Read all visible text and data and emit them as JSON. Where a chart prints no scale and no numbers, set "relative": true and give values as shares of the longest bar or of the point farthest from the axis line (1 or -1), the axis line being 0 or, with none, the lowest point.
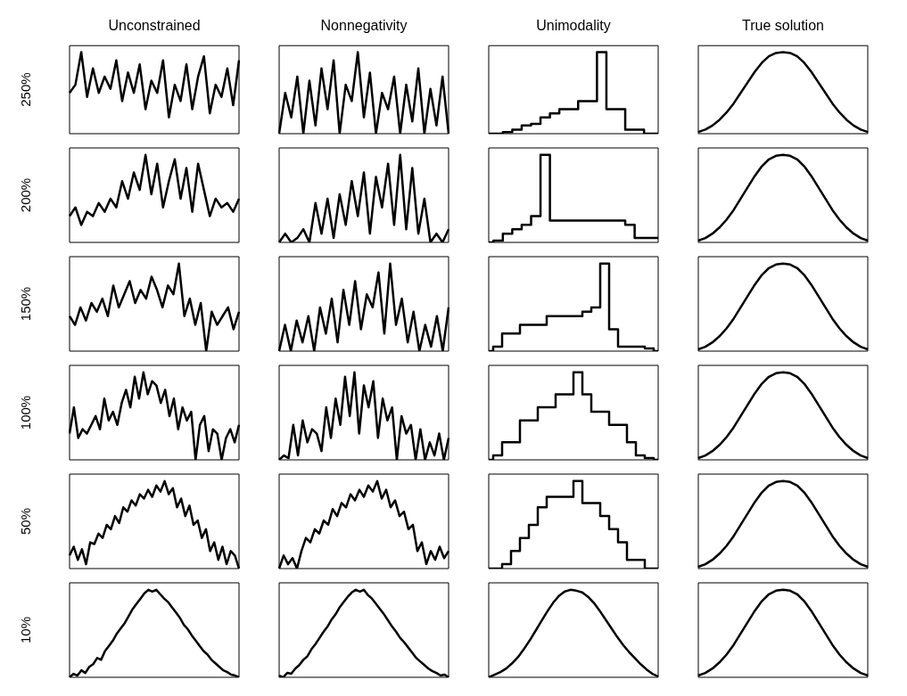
{
  "chart_data": [
    {
      "type": "line",
      "title": "Unconstrained",
      "ylabel": "250%",
      "relative": true,
      "color": "#000000",
      "categories": [
        null,
        null,
        null,
        null,
        null,
        null,
        null,
        null,
        null,
        null,
        null,
        null,
        null,
        null,
        null,
        null,
        null,
        null,
        null,
        null,
        null,
        null,
        null,
        null,
        null,
        null,
        null,
        null,
        null,
        null
      ],
      "values": [
        0.5,
        0.6,
        1,
        0.45,
        0.8,
        0.5,
        0.7,
        0.55,
        0.9,
        0.4,
        0.75,
        0.5,
        0.85,
        0.3,
        0.65,
        0.5,
        0.9,
        0.2,
        0.6,
        0.4,
        0.85,
        0.3,
        0.7,
        0.95,
        0.25,
        0.6,
        0.45,
        0.8,
        0.35,
        0.9
      ]
    },
    {
      "type": "line",
      "title": "Nonnegativity",
      "relative": true,
      "color": "#000000",
      "categories": [
        null,
        null,
        null,
        null,
        null,
        null,
        null,
        null,
        null,
        null,
        null,
        null,
        null,
        null,
        null,
        null,
        null,
        null,
        null,
        null,
        null,
        null,
        null,
        null,
        null,
        null,
        null,
        null,
        null
      ],
      "values": [
        0,
        0.5,
        0.2,
        0.7,
        0,
        0.65,
        0.1,
        0.8,
        0.3,
        0.9,
        0,
        0.6,
        0.4,
        1,
        0.2,
        0.75,
        0,
        0.5,
        0.3,
        0.7,
        0,
        0.6,
        0.15,
        0.8,
        0,
        0.55,
        0.1,
        0.7,
        0
      ]
    },
    {
      "type": "step",
      "title": "Unimodality",
      "relative": true,
      "color": "#000000",
      "categories": [
        null,
        null,
        null,
        null,
        null,
        null,
        null,
        null,
        null,
        null,
        null,
        null,
        null,
        null,
        null,
        null,
        null,
        null,
        null
      ],
      "values": [
        0,
        0,
        0.02,
        0.05,
        0.1,
        0.12,
        0.2,
        0.25,
        0.3,
        0.3,
        0.4,
        0.4,
        1,
        0.3,
        0.3,
        0.05,
        0.05,
        0,
        0
      ]
    },
    {
      "type": "line",
      "title": "True solution",
      "relative": true,
      "color": "#000000",
      "categories": [
        null,
        null,
        null,
        null,
        null,
        null,
        null,
        null,
        null,
        null,
        null,
        null,
        null,
        null,
        null,
        null,
        null,
        null,
        null,
        null,
        null,
        null,
        null,
        null,
        null
      ],
      "values": [
        0.02,
        0.05,
        0.1,
        0.17,
        0.26,
        0.37,
        0.5,
        0.63,
        0.76,
        0.87,
        0.95,
        0.99,
        1,
        0.99,
        0.95,
        0.87,
        0.76,
        0.63,
        0.5,
        0.37,
        0.26,
        0.17,
        0.1,
        0.05,
        0.02
      ]
    },
    {
      "type": "line",
      "ylabel": "200%",
      "relative": true,
      "color": "#000000",
      "categories": [
        null,
        null,
        null,
        null,
        null,
        null,
        null,
        null,
        null,
        null,
        null,
        null,
        null,
        null,
        null,
        null,
        null,
        null,
        null,
        null,
        null,
        null,
        null,
        null,
        null,
        null,
        null,
        null,
        null,
        null
      ],
      "values": [
        0.3,
        0.4,
        0.2,
        0.35,
        0.3,
        0.45,
        0.35,
        0.5,
        0.4,
        0.7,
        0.5,
        0.8,
        0.6,
        1,
        0.55,
        0.9,
        0.4,
        0.7,
        0.95,
        0.5,
        0.85,
        0.35,
        0.9,
        0.6,
        0.3,
        0.5,
        0.4,
        0.45,
        0.35,
        0.5
      ]
    },
    {
      "type": "line",
      "relative": true,
      "color": "#000000",
      "categories": [
        null,
        null,
        null,
        null,
        null,
        null,
        null,
        null,
        null,
        null,
        null,
        null,
        null,
        null,
        null,
        null,
        null,
        null,
        null,
        null,
        null,
        null,
        null,
        null,
        null,
        null,
        null,
        null,
        null
      ],
      "values": [
        0,
        0.1,
        0,
        0.05,
        0.15,
        0,
        0.45,
        0.1,
        0.5,
        0.05,
        0.55,
        0.2,
        0.7,
        0.3,
        0.8,
        0.1,
        0.75,
        0.4,
        0.9,
        0.2,
        1,
        0.15,
        0.85,
        0.1,
        0.5,
        0,
        0.1,
        0,
        0.15
      ]
    },
    {
      "type": "step",
      "relative": true,
      "color": "#000000",
      "categories": [
        null,
        null,
        null,
        null,
        null,
        null,
        null,
        null,
        null,
        null,
        null,
        null,
        null,
        null,
        null,
        null,
        null,
        null,
        null
      ],
      "values": [
        0,
        0.02,
        0.1,
        0.15,
        0.2,
        0.3,
        1,
        0.25,
        0.25,
        0.25,
        0.25,
        0.25,
        0.25,
        0.25,
        0.25,
        0.2,
        0.05,
        0.05,
        0.05
      ]
    },
    {
      "type": "line",
      "relative": true,
      "color": "#000000",
      "categories": [
        null,
        null,
        null,
        null,
        null,
        null,
        null,
        null,
        null,
        null,
        null,
        null,
        null,
        null,
        null,
        null,
        null,
        null,
        null,
        null,
        null,
        null,
        null,
        null,
        null
      ],
      "values": [
        0.02,
        0.05,
        0.1,
        0.17,
        0.26,
        0.37,
        0.5,
        0.63,
        0.76,
        0.87,
        0.95,
        0.99,
        1,
        0.99,
        0.95,
        0.87,
        0.76,
        0.63,
        0.5,
        0.37,
        0.26,
        0.17,
        0.1,
        0.05,
        0.02
      ]
    },
    {
      "type": "line",
      "ylabel": "150%",
      "relative": true,
      "color": "#000000",
      "categories": [
        null,
        null,
        null,
        null,
        null,
        null,
        null,
        null,
        null,
        null,
        null,
        null,
        null,
        null,
        null,
        null,
        null,
        null,
        null,
        null,
        null,
        null,
        null,
        null,
        null,
        null,
        null,
        null,
        null,
        null,
        null,
        null
      ],
      "values": [
        0.4,
        0.3,
        0.5,
        0.35,
        0.55,
        0.45,
        0.6,
        0.4,
        0.75,
        0.5,
        0.65,
        0.8,
        0.55,
        0.7,
        0.6,
        0.85,
        0.7,
        0.5,
        0.75,
        0.65,
        1,
        0.4,
        0.6,
        0.3,
        0.55,
        0,
        0.45,
        0.3,
        0.4,
        0.5,
        0.25,
        0.45
      ]
    },
    {
      "type": "line",
      "relative": true,
      "color": "#000000",
      "categories": [
        null,
        null,
        null,
        null,
        null,
        null,
        null,
        null,
        null,
        null,
        null,
        null,
        null,
        null,
        null,
        null,
        null,
        null,
        null,
        null,
        null,
        null,
        null,
        null,
        null,
        null,
        null,
        null,
        null,
        null
      ],
      "values": [
        0,
        0.3,
        0,
        0.35,
        0.1,
        0.4,
        0,
        0.5,
        0.2,
        0.6,
        0.1,
        0.7,
        0.3,
        0.8,
        0.25,
        0.65,
        0.5,
        0.9,
        0.2,
        1,
        0.3,
        0.6,
        0.1,
        0.45,
        0,
        0.3,
        0.05,
        0.4,
        0,
        0.5
      ]
    },
    {
      "type": "step",
      "relative": true,
      "color": "#000000",
      "categories": [
        null,
        null,
        null,
        null,
        null,
        null,
        null,
        null,
        null,
        null,
        null,
        null,
        null,
        null,
        null,
        null,
        null,
        null,
        null,
        null
      ],
      "values": [
        0,
        0.05,
        0.2,
        0.2,
        0.3,
        0.3,
        0.3,
        0.4,
        0.4,
        0.4,
        0.4,
        0.45,
        0.5,
        1,
        0.25,
        0.05,
        0.05,
        0.05,
        0.03,
        0
      ]
    },
    {
      "type": "line",
      "relative": true,
      "color": "#000000",
      "categories": [
        null,
        null,
        null,
        null,
        null,
        null,
        null,
        null,
        null,
        null,
        null,
        null,
        null,
        null,
        null,
        null,
        null,
        null,
        null,
        null,
        null,
        null,
        null,
        null,
        null
      ],
      "values": [
        0.02,
        0.05,
        0.1,
        0.17,
        0.26,
        0.37,
        0.5,
        0.63,
        0.76,
        0.87,
        0.95,
        0.99,
        1,
        0.99,
        0.95,
        0.87,
        0.76,
        0.63,
        0.5,
        0.37,
        0.26,
        0.17,
        0.1,
        0.05,
        0.02
      ]
    },
    {
      "type": "line",
      "ylabel": "100%",
      "relative": true,
      "color": "#000000",
      "categories": [
        null,
        null,
        null,
        null,
        null,
        null,
        null,
        null,
        null,
        null,
        null,
        null,
        null,
        null,
        null,
        null,
        null,
        null,
        null,
        null,
        null,
        null,
        null,
        null,
        null,
        null,
        null,
        null,
        null,
        null,
        null,
        null,
        null,
        null,
        null,
        null,
        null,
        null,
        null,
        null
      ],
      "values": [
        0.3,
        0.6,
        0.25,
        0.35,
        0.3,
        0.4,
        0.5,
        0.35,
        0.7,
        0.45,
        0.55,
        0.4,
        0.65,
        0.8,
        0.6,
        0.95,
        0.7,
        1,
        0.75,
        0.9,
        0.85,
        0.65,
        0.8,
        0.5,
        0.7,
        0.35,
        0.6,
        0.45,
        0.55,
        0,
        0.4,
        0.5,
        0.1,
        0.35,
        0.3,
        0,
        0.25,
        0.35,
        0.2,
        0.4
      ]
    },
    {
      "type": "line",
      "relative": true,
      "color": "#000000",
      "categories": [
        null,
        null,
        null,
        null,
        null,
        null,
        null,
        null,
        null,
        null,
        null,
        null,
        null,
        null,
        null,
        null,
        null,
        null,
        null,
        null,
        null,
        null,
        null,
        null,
        null,
        null,
        null,
        null,
        null,
        null,
        null,
        null,
        null,
        null,
        null,
        null,
        null
      ],
      "values": [
        0,
        0.05,
        0.02,
        0.4,
        0.05,
        0.45,
        0.2,
        0.35,
        0.3,
        0.1,
        0.6,
        0.25,
        0.7,
        0.4,
        0.95,
        0.5,
        1,
        0.3,
        0.85,
        0.6,
        0.9,
        0.25,
        0.7,
        0.45,
        0.6,
        0,
        0.5,
        0.3,
        0.4,
        0,
        0.35,
        0,
        0.2,
        0.05,
        0.3,
        0,
        0.25
      ]
    },
    {
      "type": "step",
      "relative": true,
      "color": "#000000",
      "categories": [
        null,
        null,
        null,
        null,
        null,
        null,
        null,
        null,
        null,
        null,
        null,
        null,
        null,
        null,
        null,
        null,
        null,
        null,
        null,
        null
      ],
      "values": [
        0,
        0.05,
        0.2,
        0.2,
        0.45,
        0.45,
        0.6,
        0.6,
        0.75,
        0.75,
        1,
        0.75,
        0.55,
        0.55,
        0.4,
        0.4,
        0.2,
        0.05,
        0.02,
        0
      ]
    },
    {
      "type": "line",
      "relative": true,
      "color": "#000000",
      "categories": [
        null,
        null,
        null,
        null,
        null,
        null,
        null,
        null,
        null,
        null,
        null,
        null,
        null,
        null,
        null,
        null,
        null,
        null,
        null,
        null,
        null,
        null,
        null,
        null,
        null
      ],
      "values": [
        0.02,
        0.05,
        0.1,
        0.17,
        0.26,
        0.37,
        0.5,
        0.63,
        0.76,
        0.87,
        0.95,
        0.99,
        1,
        0.99,
        0.95,
        0.87,
        0.76,
        0.63,
        0.5,
        0.37,
        0.26,
        0.17,
        0.1,
        0.05,
        0.02
      ]
    },
    {
      "type": "line",
      "ylabel": "50%",
      "relative": true,
      "color": "#000000",
      "categories": [
        null,
        null,
        null,
        null,
        null,
        null,
        null,
        null,
        null,
        null,
        null,
        null,
        null,
        null,
        null,
        null,
        null,
        null,
        null,
        null,
        null,
        null,
        null,
        null,
        null,
        null,
        null,
        null,
        null,
        null,
        null,
        null,
        null,
        null,
        null,
        null,
        null,
        null,
        null,
        null,
        null,
        null
      ],
      "values": [
        0.15,
        0.25,
        0.1,
        0.22,
        0.05,
        0.3,
        0.28,
        0.4,
        0.35,
        0.5,
        0.45,
        0.6,
        0.52,
        0.7,
        0.65,
        0.78,
        0.72,
        0.85,
        0.8,
        0.9,
        0.82,
        0.95,
        0.88,
        1,
        0.85,
        0.92,
        0.7,
        0.8,
        0.6,
        0.72,
        0.5,
        0.55,
        0.35,
        0.45,
        0.2,
        0.3,
        0.1,
        0.25,
        0.05,
        0.2,
        0.15,
        0
      ]
    },
    {
      "type": "line",
      "relative": true,
      "color": "#000000",
      "categories": [
        null,
        null,
        null,
        null,
        null,
        null,
        null,
        null,
        null,
        null,
        null,
        null,
        null,
        null,
        null,
        null,
        null,
        null,
        null,
        null,
        null,
        null,
        null,
        null,
        null,
        null,
        null,
        null,
        null,
        null,
        null,
        null,
        null,
        null,
        null,
        null,
        null,
        null,
        null
      ],
      "values": [
        0,
        0.15,
        0.05,
        0.12,
        0,
        0.2,
        0.35,
        0.3,
        0.45,
        0.4,
        0.55,
        0.5,
        0.68,
        0.6,
        0.75,
        0.7,
        0.85,
        0.78,
        0.9,
        0.82,
        0.95,
        0.88,
        1,
        0.8,
        0.9,
        0.7,
        0.78,
        0.6,
        0.65,
        0.45,
        0.5,
        0.2,
        0.3,
        0.05,
        0.2,
        0.1,
        0.25,
        0.12,
        0.2
      ]
    },
    {
      "type": "step",
      "relative": true,
      "color": "#000000",
      "categories": [
        null,
        null,
        null,
        null,
        null,
        null,
        null,
        null,
        null,
        null,
        null,
        null,
        null,
        null,
        null,
        null,
        null,
        null,
        null,
        null
      ],
      "values": [
        0,
        0,
        0.05,
        0.2,
        0.35,
        0.5,
        0.7,
        0.82,
        0.82,
        0.82,
        1,
        0.75,
        0.75,
        0.6,
        0.45,
        0.3,
        0.1,
        0.1,
        0,
        0
      ]
    },
    {
      "type": "line",
      "relative": true,
      "color": "#000000",
      "categories": [
        null,
        null,
        null,
        null,
        null,
        null,
        null,
        null,
        null,
        null,
        null,
        null,
        null,
        null,
        null,
        null,
        null,
        null,
        null,
        null,
        null,
        null,
        null,
        null,
        null
      ],
      "values": [
        0.02,
        0.05,
        0.1,
        0.17,
        0.26,
        0.37,
        0.5,
        0.63,
        0.76,
        0.87,
        0.95,
        0.99,
        1,
        0.99,
        0.95,
        0.87,
        0.76,
        0.63,
        0.5,
        0.37,
        0.26,
        0.17,
        0.1,
        0.05,
        0.02
      ]
    },
    {
      "type": "line",
      "ylabel": "10%",
      "relative": true,
      "color": "#000000",
      "categories": [
        null,
        null,
        null,
        null,
        null,
        null,
        null,
        null,
        null,
        null,
        null,
        null,
        null,
        null,
        null,
        null,
        null,
        null,
        null,
        null,
        null,
        null,
        null,
        null,
        null,
        null,
        null,
        null,
        null,
        null,
        null,
        null,
        null,
        null,
        null,
        null,
        null,
        null,
        null,
        null,
        null,
        null,
        null,
        null
      ],
      "values": [
        0,
        0.04,
        0.02,
        0.08,
        0.05,
        0.12,
        0.15,
        0.22,
        0.2,
        0.3,
        0.36,
        0.42,
        0.5,
        0.56,
        0.62,
        0.7,
        0.78,
        0.84,
        0.9,
        0.96,
        1,
        0.98,
        1,
        0.95,
        0.9,
        0.86,
        0.8,
        0.74,
        0.68,
        0.6,
        0.55,
        0.48,
        0.42,
        0.36,
        0.3,
        0.26,
        0.2,
        0.16,
        0.12,
        0.08,
        0.06,
        0.03,
        0.02,
        0
      ]
    },
    {
      "type": "line",
      "relative": true,
      "color": "#000000",
      "categories": [
        null,
        null,
        null,
        null,
        null,
        null,
        null,
        null,
        null,
        null,
        null,
        null,
        null,
        null,
        null,
        null,
        null,
        null,
        null,
        null,
        null,
        null,
        null,
        null,
        null,
        null,
        null,
        null,
        null,
        null,
        null,
        null,
        null,
        null,
        null,
        null,
        null,
        null,
        null,
        null,
        null,
        null,
        null
      ],
      "values": [
        0.02,
        0,
        0.05,
        0.04,
        0.1,
        0.14,
        0.2,
        0.24,
        0.32,
        0.38,
        0.45,
        0.52,
        0.58,
        0.66,
        0.72,
        0.8,
        0.86,
        0.92,
        0.97,
        1,
        0.98,
        1,
        0.94,
        0.9,
        0.84,
        0.78,
        0.72,
        0.65,
        0.58,
        0.52,
        0.45,
        0.4,
        0.34,
        0.28,
        0.22,
        0.18,
        0.14,
        0.1,
        0.07,
        0.05,
        0.02,
        0.03,
        0
      ]
    },
    {
      "type": "line",
      "relative": true,
      "color": "#000000",
      "categories": [
        null,
        null,
        null,
        null,
        null,
        null,
        null,
        null,
        null,
        null,
        null,
        null,
        null,
        null,
        null,
        null,
        null,
        null,
        null,
        null,
        null,
        null,
        null,
        null,
        null,
        null,
        null,
        null,
        null,
        null
      ],
      "values": [
        0,
        0.03,
        0.06,
        0.1,
        0.16,
        0.23,
        0.32,
        0.42,
        0.53,
        0.64,
        0.75,
        0.85,
        0.93,
        0.98,
        1,
        0.99,
        0.97,
        0.92,
        0.85,
        0.76,
        0.66,
        0.56,
        0.46,
        0.37,
        0.29,
        0.22,
        0.15,
        0.09,
        0.04,
        0.01
      ]
    },
    {
      "type": "line",
      "relative": true,
      "color": "#000000",
      "categories": [
        null,
        null,
        null,
        null,
        null,
        null,
        null,
        null,
        null,
        null,
        null,
        null,
        null,
        null,
        null,
        null,
        null,
        null,
        null,
        null,
        null,
        null,
        null,
        null,
        null
      ],
      "values": [
        0.02,
        0.05,
        0.1,
        0.17,
        0.26,
        0.37,
        0.5,
        0.63,
        0.76,
        0.87,
        0.95,
        0.99,
        1,
        0.99,
        0.95,
        0.87,
        0.76,
        0.63,
        0.5,
        0.37,
        0.26,
        0.17,
        0.1,
        0.05,
        0.02
      ]
    }
  ]
}
